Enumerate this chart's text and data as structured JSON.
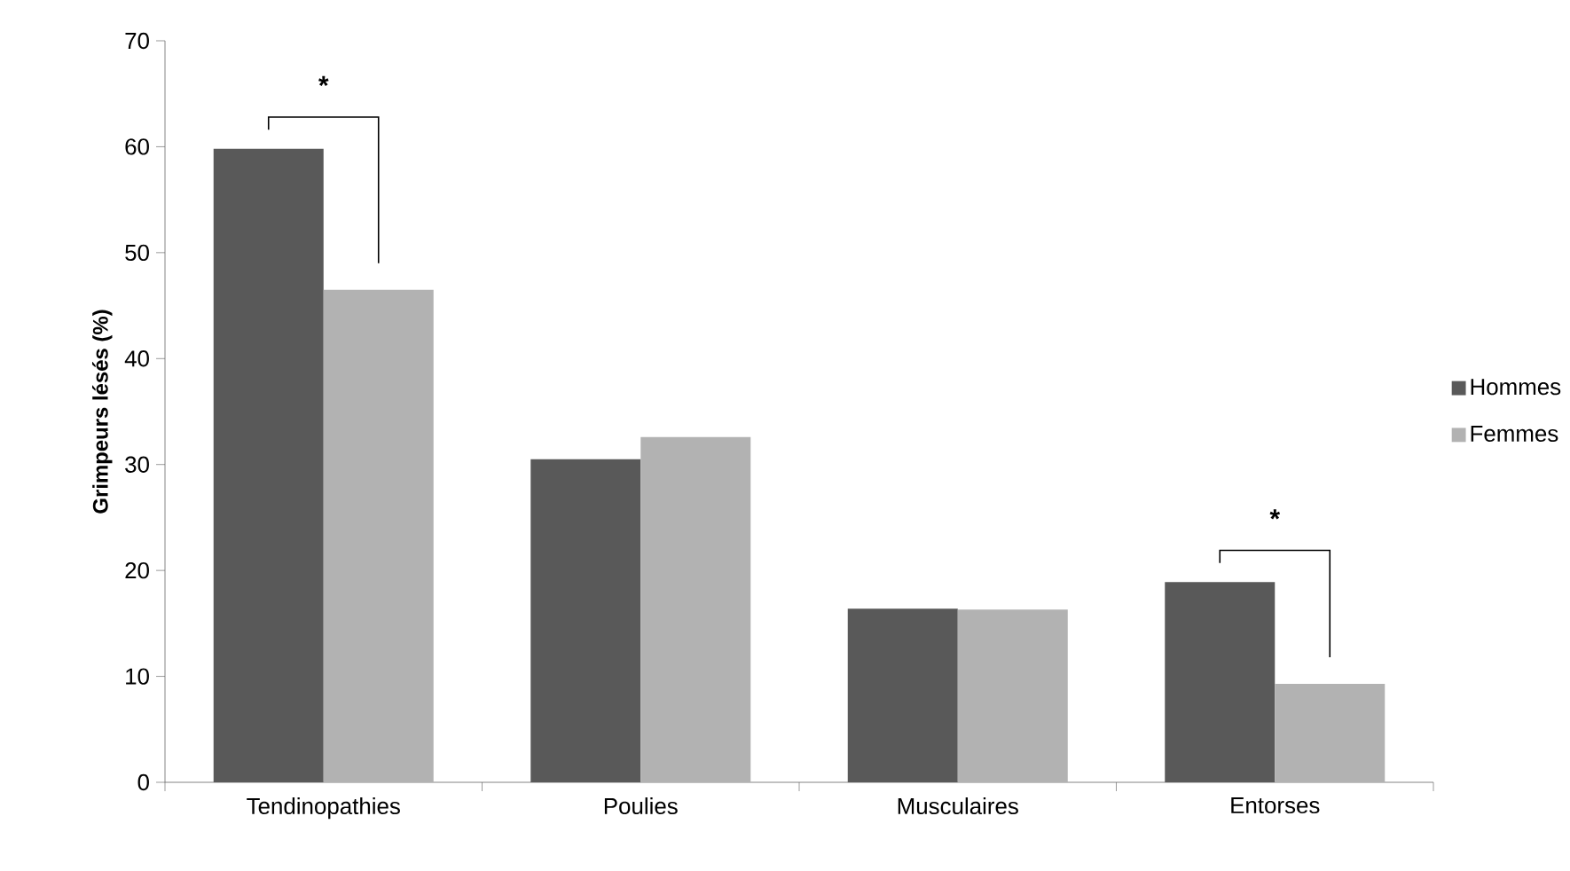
{
  "chart_data": {
    "type": "bar",
    "categories": [
      "Tendinopathies",
      "Poulies",
      "Musculaires",
      "Entorses"
    ],
    "ylabel": "Grimpeurs lésés (%)",
    "series": [
      {
        "name": "Hommes",
        "color": "#595959",
        "values": [
          59.8,
          30.5,
          16.4,
          18.9
        ]
      },
      {
        "name": "Femmes",
        "color": "#b2b2b2",
        "values": [
          46.5,
          32.6,
          16.3,
          9.3
        ]
      }
    ],
    "ylim": [
      0,
      70
    ],
    "yticks": [
      0,
      10,
      20,
      30,
      40,
      50,
      60,
      70
    ],
    "legend": "right",
    "grid": false,
    "annotations": [
      "*",
      "*"
    ]
  }
}
